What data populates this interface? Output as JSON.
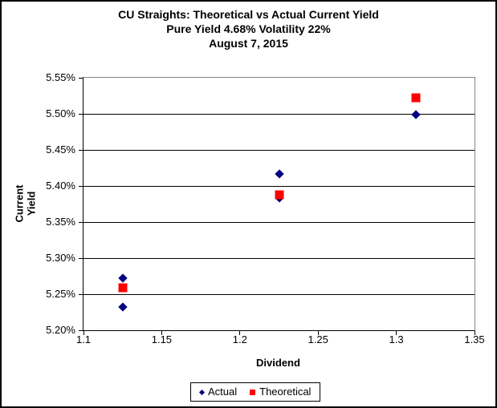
{
  "chart_data": {
    "type": "scatter",
    "title": "CU Straights: Theoretical vs Actual Current Yield",
    "subtitle": "Pure Yield 4.68% Volatility 22%",
    "date_line": "August 7, 2015",
    "xlabel": "Dividend",
    "ylabel": "Current Yield",
    "xlim": [
      1.1,
      1.35
    ],
    "ylim": [
      5.2,
      5.55
    ],
    "x_ticks": [
      "1.1",
      "1.15",
      "1.2",
      "1.25",
      "1.3",
      "1.35"
    ],
    "y_ticks": [
      "5.55%",
      "5.50%",
      "5.45%",
      "5.40%",
      "5.35%",
      "5.30%",
      "5.25%",
      "5.20%"
    ],
    "y_unit": "percent",
    "grid": "horizontal",
    "legend_position": "bottom-center",
    "background_color": "#FFFFFF",
    "gridline_color": "#000000",
    "series": [
      {
        "name": "Actual",
        "marker": "diamond",
        "color": "#000080",
        "points": [
          [
            1.125,
            5.272
          ],
          [
            1.125,
            5.232
          ],
          [
            1.225,
            5.417
          ],
          [
            1.225,
            5.383
          ],
          [
            1.3125,
            5.499
          ]
        ]
      },
      {
        "name": "Theoretical",
        "marker": "square",
        "color": "#FF0000",
        "points": [
          [
            1.125,
            5.259
          ],
          [
            1.225,
            5.388
          ],
          [
            1.3125,
            5.522
          ]
        ]
      }
    ]
  }
}
